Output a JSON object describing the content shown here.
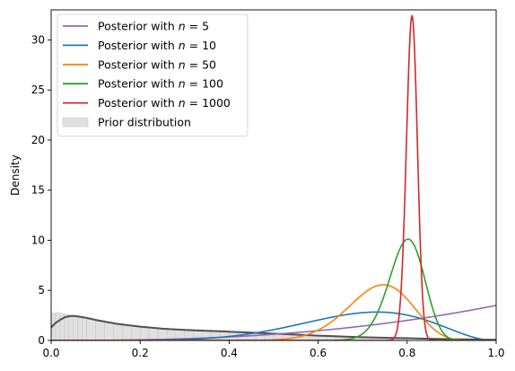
{
  "chart_data": {
    "type": "line",
    "title": "",
    "xlabel": "",
    "ylabel": "Density",
    "xlim": [
      0,
      1
    ],
    "ylim": [
      0,
      33
    ],
    "grid": false,
    "legend_position": "upper-left",
    "x_ticks": [
      "0.0",
      "0.2",
      "0.4",
      "0.6",
      "0.8",
      "1.0"
    ],
    "y_ticks": [
      "0",
      "5",
      "10",
      "15",
      "20",
      "25",
      "30"
    ],
    "series": [
      {
        "name": "Posterior with n = 5",
        "legend_prefix": "Posterior with ",
        "legend_var": "n",
        "legend_suffix": " = 5",
        "color": "#9467bd",
        "kind": "beta",
        "alpha": 3.5,
        "beta": 1.0
      },
      {
        "name": "Posterior with n = 10",
        "legend_prefix": "Posterior with ",
        "legend_var": "n",
        "legend_suffix": " = 10",
        "color": "#1f77b4",
        "kind": "beta",
        "alpha": 7.3,
        "beta": 3.3
      },
      {
        "name": "Posterior with n = 50",
        "legend_prefix": "Posterior with ",
        "legend_var": "n",
        "legend_suffix": " = 50",
        "color": "#ff7f0e",
        "kind": "beta",
        "alpha": 27.5,
        "beta": 10.0
      },
      {
        "name": "Posterior with n = 100",
        "legend_prefix": "Posterior with ",
        "legend_var": "n",
        "legend_suffix": " = 100",
        "color": "#2ca02c",
        "kind": "beta",
        "alpha": 82.0,
        "beta": 21.0
      },
      {
        "name": "Posterior with n = 1000",
        "legend_prefix": "Posterior with ",
        "legend_var": "n",
        "legend_suffix": " = 1000",
        "color": "#d62728",
        "kind": "beta",
        "alpha": 820.0,
        "beta": 192.0
      }
    ],
    "prior": {
      "name": "Prior distribution",
      "fill_color": "#e0e0e0",
      "edge_color": "#c8c8c8",
      "line_color": "#505050",
      "kde_points": [
        [
          0.0,
          1.3
        ],
        [
          0.01,
          1.75
        ],
        [
          0.02,
          2.05
        ],
        [
          0.03,
          2.3
        ],
        [
          0.04,
          2.42
        ],
        [
          0.05,
          2.45
        ],
        [
          0.06,
          2.4
        ],
        [
          0.08,
          2.25
        ],
        [
          0.1,
          2.05
        ],
        [
          0.12,
          1.88
        ],
        [
          0.15,
          1.65
        ],
        [
          0.2,
          1.38
        ],
        [
          0.25,
          1.18
        ],
        [
          0.3,
          1.05
        ],
        [
          0.35,
          0.96
        ],
        [
          0.4,
          0.88
        ],
        [
          0.45,
          0.78
        ],
        [
          0.5,
          0.68
        ],
        [
          0.55,
          0.58
        ],
        [
          0.6,
          0.48
        ],
        [
          0.65,
          0.4
        ],
        [
          0.7,
          0.33
        ],
        [
          0.75,
          0.27
        ],
        [
          0.8,
          0.22
        ],
        [
          0.85,
          0.17
        ],
        [
          0.9,
          0.13
        ],
        [
          0.95,
          0.1
        ],
        [
          1.0,
          0.07
        ]
      ],
      "hist_bins": [
        [
          0.0,
          0.01,
          2.7
        ],
        [
          0.01,
          0.02,
          2.8
        ],
        [
          0.02,
          0.03,
          2.7
        ],
        [
          0.03,
          0.04,
          2.6
        ],
        [
          0.04,
          0.05,
          2.5
        ],
        [
          0.05,
          0.06,
          2.5
        ],
        [
          0.06,
          0.07,
          2.4
        ],
        [
          0.07,
          0.08,
          2.25
        ],
        [
          0.08,
          0.1,
          2.1
        ],
        [
          0.1,
          0.12,
          1.9
        ],
        [
          0.12,
          0.14,
          1.75
        ],
        [
          0.14,
          0.16,
          1.62
        ],
        [
          0.16,
          0.18,
          1.52
        ],
        [
          0.18,
          0.2,
          1.43
        ],
        [
          0.2,
          0.22,
          1.35
        ],
        [
          0.22,
          0.24,
          1.28
        ],
        [
          0.24,
          0.26,
          1.21
        ],
        [
          0.26,
          0.28,
          1.15
        ],
        [
          0.28,
          0.3,
          1.1
        ],
        [
          0.3,
          0.32,
          1.06
        ],
        [
          0.32,
          0.34,
          1.02
        ],
        [
          0.34,
          0.36,
          0.98
        ],
        [
          0.36,
          0.38,
          0.94
        ],
        [
          0.38,
          0.4,
          0.9
        ],
        [
          0.4,
          0.42,
          0.86
        ],
        [
          0.42,
          0.44,
          0.82
        ],
        [
          0.44,
          0.46,
          0.78
        ],
        [
          0.46,
          0.48,
          0.74
        ],
        [
          0.48,
          0.5,
          0.7
        ],
        [
          0.5,
          0.52,
          0.66
        ],
        [
          0.52,
          0.54,
          0.62
        ],
        [
          0.54,
          0.56,
          0.58
        ],
        [
          0.56,
          0.58,
          0.54
        ],
        [
          0.58,
          0.6,
          0.5
        ],
        [
          0.6,
          0.62,
          0.46
        ],
        [
          0.62,
          0.64,
          0.43
        ],
        [
          0.64,
          0.66,
          0.4
        ],
        [
          0.66,
          0.68,
          0.37
        ],
        [
          0.68,
          0.7,
          0.34
        ],
        [
          0.7,
          0.72,
          0.31
        ],
        [
          0.72,
          0.74,
          0.29
        ],
        [
          0.74,
          0.76,
          0.26
        ],
        [
          0.76,
          0.78,
          0.24
        ],
        [
          0.78,
          0.8,
          0.22
        ]
      ]
    }
  }
}
